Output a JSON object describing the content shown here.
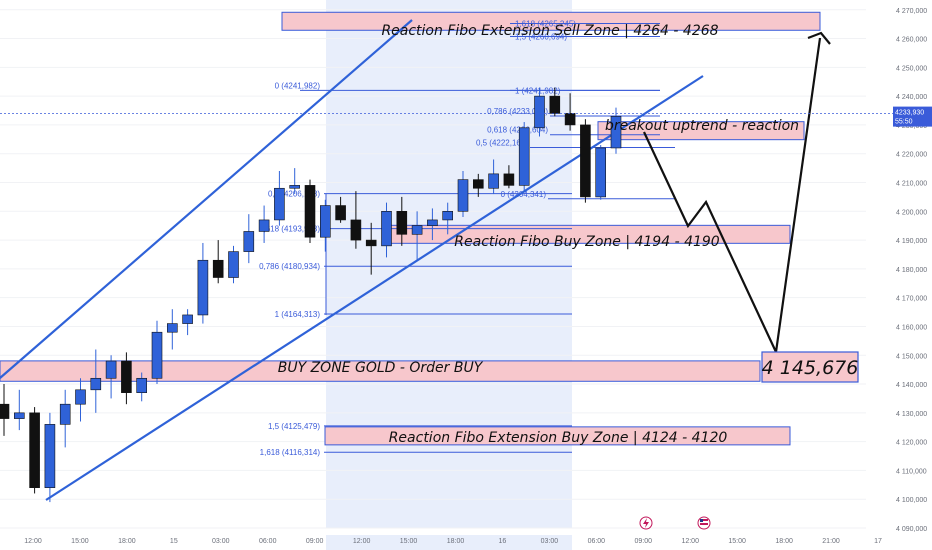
{
  "chart_data": {
    "type": "candlestick",
    "title": "",
    "y_axis": {
      "min": 4090,
      "max": 4272,
      "ticks": [
        "4 090,000",
        "4 100,000",
        "4 110,000",
        "4 120,000",
        "4 130,000",
        "4 140,000",
        "4 150,000",
        "4 160,000",
        "4 170,000",
        "4 180,000",
        "4 190,000",
        "4 200,000",
        "4 210,000",
        "4 220,000",
        "4 230,000",
        "4 240,000",
        "4 250,000",
        "4 260,000",
        "4 270,000"
      ],
      "tick_values": [
        4090,
        4100,
        4110,
        4120,
        4130,
        4140,
        4150,
        4160,
        4170,
        4180,
        4190,
        4200,
        4210,
        4220,
        4230,
        4240,
        4250,
        4260,
        4270
      ],
      "current_price_label": "4233,930",
      "current_price": 4233.93,
      "countdown_label": "55:50"
    },
    "x_axis": {
      "labels": [
        "12:00",
        "15:00",
        "18:00",
        "15",
        "03:00",
        "06:00",
        "09:00",
        "12:00",
        "15:00",
        "18:00",
        "16",
        "03:00",
        "06:00",
        "09:00",
        "12:00",
        "15:00",
        "18:00",
        "21:00",
        "17"
      ],
      "label_index": [
        0,
        1.5,
        3,
        4.5,
        6,
        7.5,
        9,
        10.5,
        12,
        13.5,
        15,
        16.5,
        18,
        19.5,
        21,
        22.5,
        24,
        25.5,
        27
      ]
    },
    "candles": [
      {
        "o": 4133,
        "h": 4140,
        "l": 4122,
        "c": 4128
      },
      {
        "o": 4128,
        "h": 4138,
        "l": 4124,
        "c": 4130
      },
      {
        "o": 4130,
        "h": 4132,
        "l": 4102,
        "c": 4104
      },
      {
        "o": 4104,
        "h": 4130,
        "l": 4099,
        "c": 4126
      },
      {
        "o": 4126,
        "h": 4138,
        "l": 4118,
        "c": 4133
      },
      {
        "o": 4133,
        "h": 4142,
        "l": 4127,
        "c": 4138
      },
      {
        "o": 4138,
        "h": 4152,
        "l": 4130,
        "c": 4142
      },
      {
        "o": 4142,
        "h": 4150,
        "l": 4135,
        "c": 4148
      },
      {
        "o": 4148,
        "h": 4151,
        "l": 4133,
        "c": 4137
      },
      {
        "o": 4137,
        "h": 4144,
        "l": 4134,
        "c": 4142
      },
      {
        "o": 4142,
        "h": 4162,
        "l": 4140,
        "c": 4158
      },
      {
        "o": 4158,
        "h": 4166,
        "l": 4152,
        "c": 4161
      },
      {
        "o": 4161,
        "h": 4166,
        "l": 4157,
        "c": 4164
      },
      {
        "o": 4164,
        "h": 4189,
        "l": 4161,
        "c": 4183
      },
      {
        "o": 4183,
        "h": 4190,
        "l": 4175,
        "c": 4177
      },
      {
        "o": 4177,
        "h": 4188,
        "l": 4175,
        "c": 4186
      },
      {
        "o": 4186,
        "h": 4199,
        "l": 4182,
        "c": 4193
      },
      {
        "o": 4193,
        "h": 4202,
        "l": 4189,
        "c": 4197
      },
      {
        "o": 4197,
        "h": 4214,
        "l": 4195,
        "c": 4208
      },
      {
        "o": 4208,
        "h": 4215,
        "l": 4206,
        "c": 4209
      },
      {
        "o": 4209,
        "h": 4211,
        "l": 4189,
        "c": 4191
      },
      {
        "o": 4191,
        "h": 4204,
        "l": 4186,
        "c": 4202
      },
      {
        "o": 4202,
        "h": 4205,
        "l": 4196,
        "c": 4197
      },
      {
        "o": 4197,
        "h": 4207,
        "l": 4187,
        "c": 4190
      },
      {
        "o": 4190,
        "h": 4196,
        "l": 4178,
        "c": 4188
      },
      {
        "o": 4188,
        "h": 4203,
        "l": 4184,
        "c": 4200
      },
      {
        "o": 4200,
        "h": 4205,
        "l": 4188,
        "c": 4192
      },
      {
        "o": 4192,
        "h": 4200,
        "l": 4183,
        "c": 4195
      },
      {
        "o": 4195,
        "h": 4201,
        "l": 4190,
        "c": 4197
      },
      {
        "o": 4197,
        "h": 4203,
        "l": 4192,
        "c": 4200
      },
      {
        "o": 4200,
        "h": 4214,
        "l": 4198,
        "c": 4211
      },
      {
        "o": 4211,
        "h": 4213,
        "l": 4205,
        "c": 4208
      },
      {
        "o": 4208,
        "h": 4218,
        "l": 4206,
        "c": 4213
      },
      {
        "o": 4213,
        "h": 4216,
        "l": 4208,
        "c": 4209
      },
      {
        "o": 4209,
        "h": 4231,
        "l": 4207,
        "c": 4229
      },
      {
        "o": 4229,
        "h": 4243,
        "l": 4226,
        "c": 4240
      },
      {
        "o": 4240,
        "h": 4243,
        "l": 4233,
        "c": 4234
      },
      {
        "o": 4234,
        "h": 4241,
        "l": 4228,
        "c": 4230
      },
      {
        "o": 4230,
        "h": 4232,
        "l": 4203,
        "c": 4205
      },
      {
        "o": 4205,
        "h": 4223,
        "l": 4204,
        "c": 4222
      },
      {
        "o": 4222,
        "h": 4236,
        "l": 4220,
        "c": 4233
      }
    ],
    "fib_retracement_1": {
      "levels": [
        {
          "label": "0 (4241,982)",
          "value": 4241.982
        },
        {
          "label": "0,786 (4233,089)",
          "value": 4233.089
        },
        {
          "label": "0,618 (4226,604)",
          "value": 4226.604
        },
        {
          "label": "0,5 (4222,162)",
          "value": 4222.162
        },
        {
          "label": "0 (4204,341)",
          "value": 4204.341
        },
        {
          "label": "1 (4241,982)",
          "value": 4241.982
        },
        {
          "label": "1,618 (4265,245)",
          "value": 4265.245
        },
        {
          "label": "1,5 (4260,694)",
          "value": 4260.694
        }
      ]
    },
    "fib_retracement_2": {
      "levels": [
        {
          "label": "0,5 (4206,148)",
          "value": 4206.148
        },
        {
          "label": "0,618 (4193,983)",
          "value": 4193.983
        },
        {
          "label": "0,786 (4180,934)",
          "value": 4180.934
        },
        {
          "label": "1 (4164,313)",
          "value": 4164.313
        },
        {
          "label": "1,5 (4125,479)",
          "value": 4125.479
        },
        {
          "label": "1,618 (4116,314)",
          "value": 4116.314
        }
      ]
    },
    "zones": [
      {
        "label": "Reaction Fibo Extension Sell Zone  |  4264 - 4268",
        "top": 4268,
        "bottom": 4264
      },
      {
        "label": "breakout uptrend - reaction",
        "top": 4230,
        "bottom": 4226
      },
      {
        "label": "Reaction Fibo Buy Zone | 4194 - 4190",
        "top": 4194,
        "bottom": 4190
      },
      {
        "label": "BUY ZONE GOLD - Order BUY",
        "top": 4147,
        "bottom": 4142
      },
      {
        "label": "Reaction Fibo Extension Buy Zone | 4124 - 4120",
        "top": 4124,
        "bottom": 4120
      }
    ],
    "price_tag": "4 145,676",
    "channel": {
      "upper": [
        [
          0,
          4137
        ],
        [
          27,
          4268
        ]
      ],
      "lower": [
        [
          0,
          4099
        ],
        [
          27,
          4233
        ]
      ]
    },
    "projection_path": [
      {
        "t": "now",
        "price": 4222
      },
      {
        "t": "mid",
        "price": 4200
      },
      {
        "t": "mid2",
        "price": 4205
      },
      {
        "t": "low",
        "price": 4145.676
      },
      {
        "t": "high",
        "price": 4264
      }
    ],
    "colors": {
      "bull": "#2f62d8",
      "bear": "#111111",
      "zone_fill": "#f7c7cc",
      "zone_border": "#3a5bd9",
      "channel": "#2f62d8",
      "fib": "#3a5bd9",
      "highlight": "#e8eefb"
    },
    "event_icons": [
      "lightning-icon",
      "us-flag-icon"
    ]
  }
}
